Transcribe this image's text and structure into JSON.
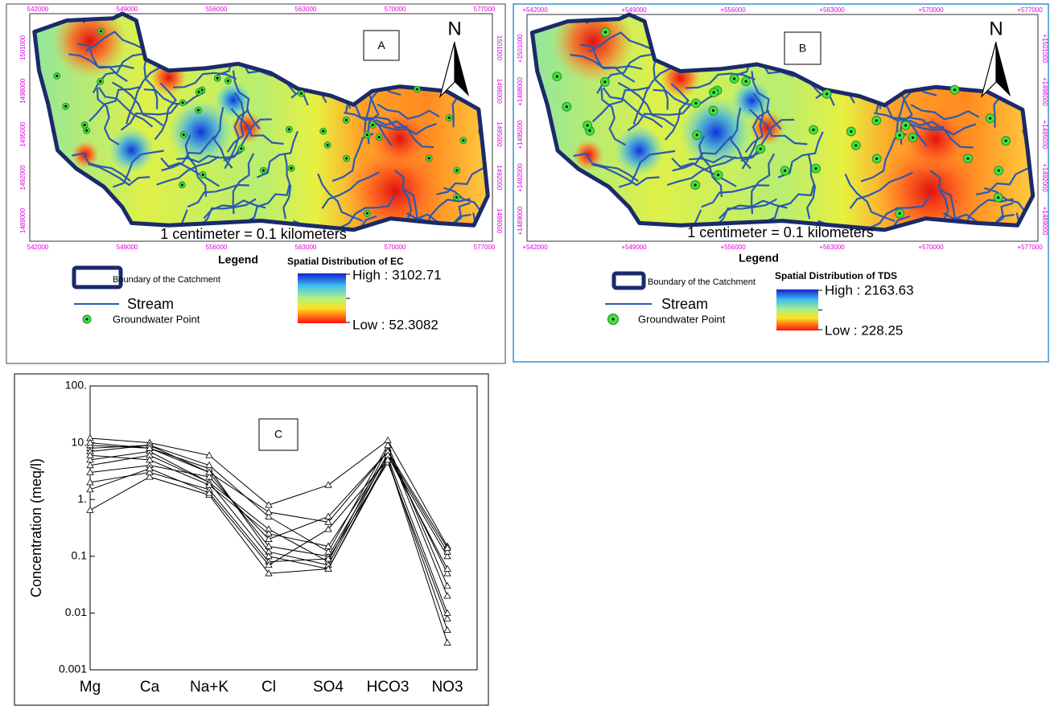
{
  "maps": [
    {
      "panel_label": "A",
      "north": "N",
      "x_ticks": [
        "542000",
        "549000",
        "556000",
        "563000",
        "570000",
        "577000"
      ],
      "y_ticks": [
        "1501000",
        "1498000",
        "1495000",
        "1492000",
        "1489000"
      ],
      "scale_text": "1 centimeter = 0.1 kilometers",
      "legend": {
        "title": "Legend",
        "boundary": "Boundary of the Catchment",
        "stream": "Stream",
        "point": "Groundwater Point"
      },
      "colorbar": {
        "title": "Spatial Distribution of EC",
        "high": "High : 3102.71",
        "low": "Low : 52.3082"
      }
    },
    {
      "panel_label": "B",
      "north": "N",
      "x_ticks": [
        "+542000",
        "+549000",
        "+556000",
        "+563000",
        "+570000",
        "+577000"
      ],
      "y_ticks": [
        "+1501000",
        "+1498000",
        "+1495000",
        "+1492000",
        "+1489000"
      ],
      "scale_text": "1 centimeter = 0.1 kilometers",
      "legend": {
        "title": "Legend",
        "boundary": "Boundary of the Catchment",
        "stream": "Stream",
        "point": "Groundwater Point"
      },
      "colorbar": {
        "title": "Spatial Distribution of TDS",
        "high": "High : 2163.63",
        "low": "Low : 228.25"
      }
    }
  ],
  "chart_data": {
    "type": "line",
    "panel_label": "C",
    "y_label": "Concentration (meq/l)",
    "categories": [
      "Mg",
      "Ca",
      "Na+K",
      "Cl",
      "SO4",
      "HCO3",
      "NO3"
    ],
    "log_y": true,
    "ylim": [
      0.001,
      100
    ],
    "yticks": [
      0.001,
      0.01,
      0.1,
      {
        "value": 1,
        "label": "1."
      },
      {
        "value": 10,
        "label": "10."
      },
      {
        "value": 100,
        "label": "100."
      }
    ],
    "color": "#000000",
    "marker": "triangle",
    "series": [
      {
        "values": [
          8,
          9,
          3,
          0.15,
          0.1,
          6,
          0.1
        ]
      },
      {
        "values": [
          5,
          7,
          2,
          0.3,
          0.08,
          8,
          0.02
        ]
      },
      {
        "values": [
          12,
          10,
          6,
          0.8,
          1.8,
          11,
          0.15
        ]
      },
      {
        "values": [
          0.65,
          2.5,
          1.2,
          0.05,
          0.06,
          5,
          0.003
        ]
      },
      {
        "values": [
          3,
          4,
          2.5,
          0.2,
          0.5,
          7,
          0.05
        ]
      },
      {
        "values": [
          9,
          8,
          3.5,
          0.12,
          0.07,
          6.5,
          0.12
        ]
      },
      {
        "values": [
          2,
          3,
          1.5,
          0.08,
          0.09,
          4.5,
          0.008
        ]
      },
      {
        "values": [
          7,
          9,
          4,
          0.5,
          0.12,
          9,
          0.03
        ]
      },
      {
        "values": [
          4,
          6,
          2,
          0.1,
          0.06,
          5.5,
          0.01
        ]
      },
      {
        "values": [
          10,
          8,
          3,
          0.6,
          0.4,
          7,
          0.14
        ]
      },
      {
        "values": [
          6,
          5,
          1.8,
          0.25,
          0.15,
          6,
          0.06
        ]
      },
      {
        "values": [
          1.5,
          3.5,
          1.3,
          0.07,
          0.3,
          5,
          0.005
        ]
      }
    ]
  }
}
